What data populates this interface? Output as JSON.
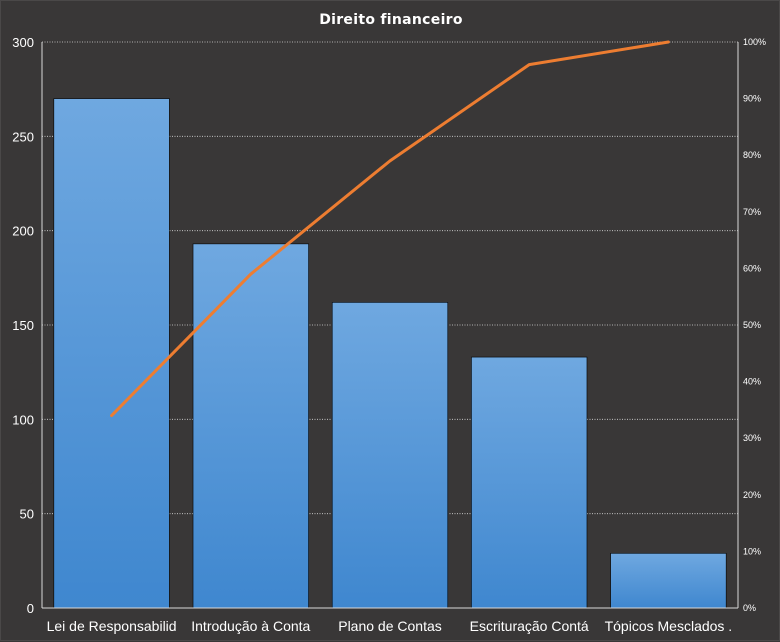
{
  "chart_data": {
    "type": "bar",
    "title": "Direito  financeiro",
    "categories": [
      "Lei de Responsabilid",
      "Introdução  à Conta",
      "Plano de Contas",
      "Escrituração Contá",
      "Tópicos Mesclados ."
    ],
    "values": [
      270,
      193,
      162,
      133,
      29
    ],
    "cumulative_percent": [
      34,
      59,
      79,
      96,
      100
    ],
    "ylim": [
      0,
      300
    ],
    "y_ticks": [
      "0",
      "50",
      "100",
      "150",
      "200",
      "250",
      "300"
    ],
    "y2lim": [
      0,
      100
    ],
    "y2_ticks": [
      "0%",
      "10%",
      "20%",
      "30%",
      "40%",
      "50%",
      "60%",
      "70%",
      "80%",
      "90%",
      "100%"
    ],
    "grid": true,
    "legend": "none",
    "colors": {
      "background": "#393737",
      "bar_top": "#6fa8e0",
      "bar_bottom": "#3f87cf",
      "line": "#ed7d31"
    }
  }
}
